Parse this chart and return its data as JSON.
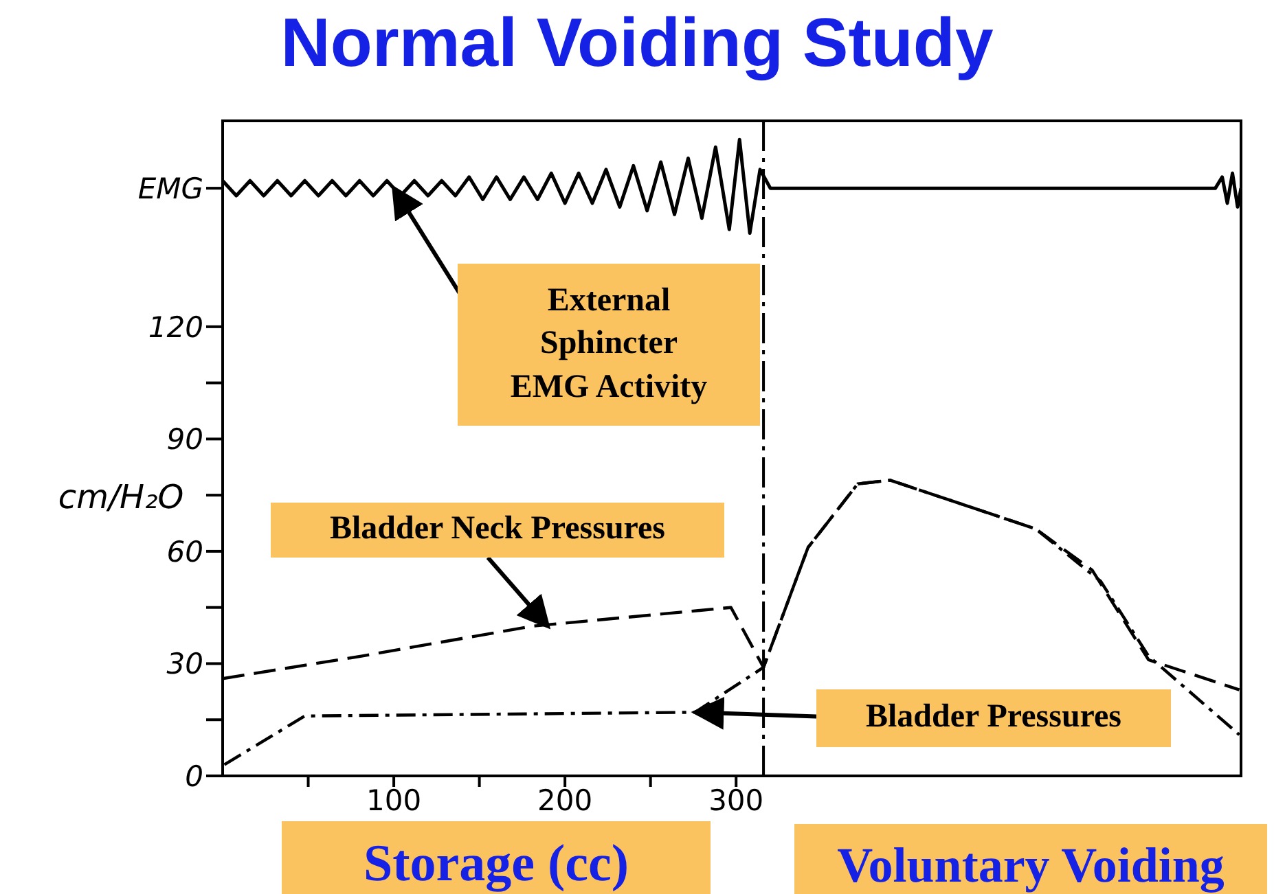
{
  "chart_data": {
    "type": "line",
    "title": "Normal Voiding Study",
    "xlabel": "Storage (cc)",
    "ylabel": "cm/H₂O",
    "xlim": [
      0,
      595
    ],
    "ylim": [
      0,
      175
    ],
    "xticks": [
      {
        "value": 50,
        "label": null
      },
      100,
      {
        "value": 150,
        "label": null
      },
      200,
      {
        "value": 250,
        "label": null
      },
      300
    ],
    "yticks": [
      0,
      {
        "value": 15,
        "label": null
      },
      30,
      {
        "value": 45,
        "label": null
      },
      60,
      {
        "value": 75,
        "label": null
      },
      90,
      {
        "value": 105,
        "label": null
      },
      120,
      {
        "value": 157,
        "label": "EMG"
      }
    ],
    "marker": "none",
    "series": [
      {
        "color": "#000000",
        "line_style": "solid",
        "x": [
          0,
          8,
          16,
          24,
          32,
          40,
          48,
          56,
          64,
          72,
          80,
          88,
          96,
          104,
          112,
          120,
          128,
          136,
          144,
          152,
          160,
          168,
          176,
          184,
          192,
          200,
          208,
          216,
          224,
          232,
          240,
          248,
          256,
          264,
          272,
          280,
          288,
          296,
          302,
          308,
          314,
          320,
          400,
          500,
          580,
          584,
          587,
          590,
          593,
          595
        ],
        "values": [
          159,
          155,
          159,
          155,
          159,
          155,
          159,
          155,
          159,
          155,
          159,
          155,
          159,
          155,
          159,
          155,
          159,
          155,
          160,
          154,
          160,
          154,
          160,
          154,
          161,
          153,
          161,
          153,
          162,
          152,
          163,
          151,
          164,
          150,
          165,
          149,
          168,
          146,
          170,
          145,
          162,
          157,
          157,
          157,
          157,
          160,
          153,
          161,
          152,
          157
        ]
      },
      {
        "name": null,
        "color": "#000000",
        "line_style": "dashed",
        "x": [
          0,
          81,
          181,
          297,
          316,
          342,
          371,
          390,
          475,
          508,
          541,
          594
        ],
        "values": [
          26,
          32,
          40,
          45,
          29,
          61,
          78,
          79,
          66,
          55,
          31,
          23
        ]
      },
      {
        "color": "#000000",
        "line_style": "dashed",
        "x": [
          1,
          48,
          276,
          316,
          342,
          371,
          390,
          475,
          513,
          541,
          594
        ],
        "values": [
          3,
          16,
          17,
          29,
          61,
          78,
          79,
          66,
          52,
          32,
          11
        ]
      }
    ],
    "ref_lines": [
      {
        "axis": "x",
        "value": 316,
        "line_style": "dashed",
        "color": "#000000"
      }
    ],
    "annotations": [
      {
        "text": "External Sphincter EMG Activity",
        "x": 100,
        "y": 157
      },
      {
        "text": "Bladder Neck Pressures",
        "x": 190,
        "y": 40
      },
      {
        "text": "Bladder Pressures",
        "x": 276,
        "y": 17
      },
      "Voluntary Voiding"
    ]
  }
}
